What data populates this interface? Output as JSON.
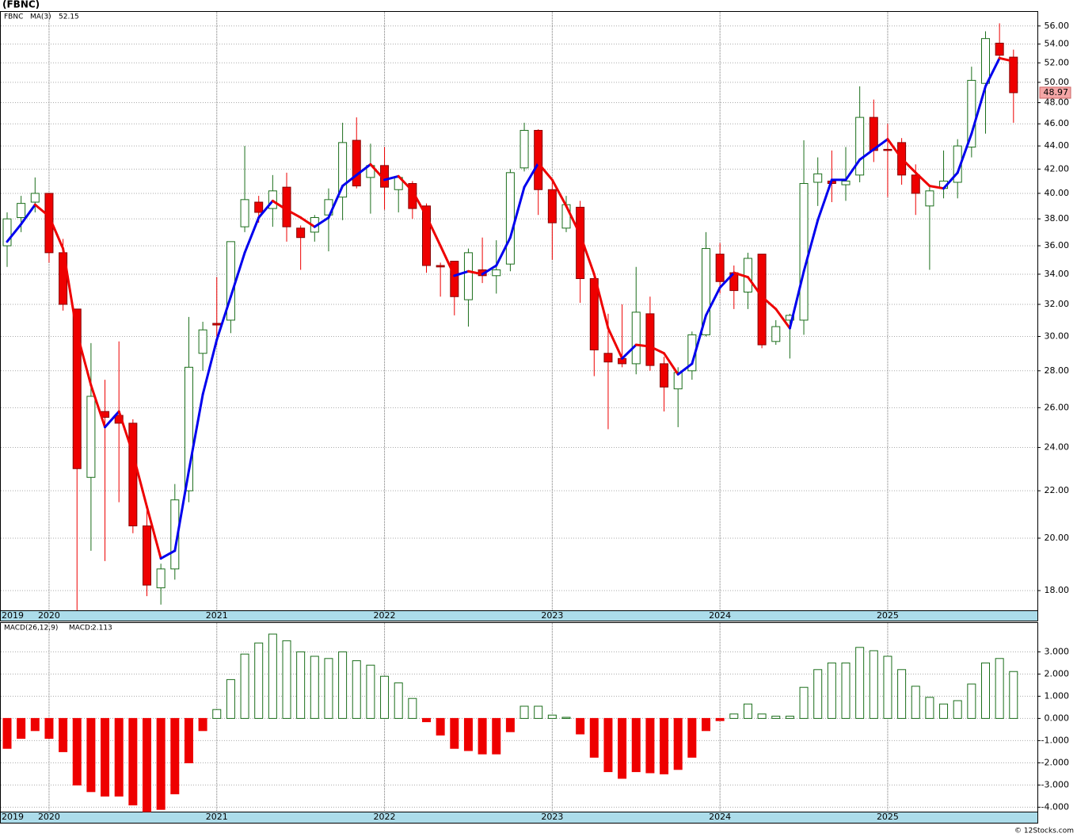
{
  "footer": "© 12Stocks.com",
  "chart_data": [
    {
      "type": "candlestick",
      "title": "(FBNC)",
      "log_scale": true,
      "grid": true,
      "categories": [
        "2019",
        null,
        null,
        "2020",
        null,
        null,
        null,
        null,
        null,
        null,
        null,
        null,
        null,
        null,
        null,
        "2021",
        null,
        null,
        null,
        null,
        null,
        null,
        null,
        null,
        null,
        null,
        null,
        "2022",
        null,
        null,
        null,
        null,
        null,
        null,
        null,
        null,
        null,
        null,
        null,
        "2023",
        null,
        null,
        null,
        null,
        null,
        null,
        null,
        null,
        null,
        null,
        null,
        "2024",
        null,
        null,
        null,
        null,
        null,
        null,
        null,
        null,
        null,
        null,
        null,
        "2025",
        null,
        null,
        null,
        null,
        null,
        null,
        null,
        null,
        null
      ],
      "series": [
        {
          "name": "FBNC",
          "up_color": "#1b6e1b",
          "down_color": "#ee0000",
          "open": [
            36,
            38.1,
            39.3,
            40,
            35.5,
            31.7,
            22.6,
            25.8,
            25.6,
            25.2,
            20.5,
            18.1,
            18.8,
            22,
            29,
            30.8,
            31,
            37.4,
            39.3,
            38.8,
            40.5,
            37.3,
            37,
            38.3,
            39.7,
            44.5,
            41.3,
            42.3,
            40.3,
            40.8,
            39,
            34.6,
            34.9,
            32.3,
            34.3,
            33.9,
            34.7,
            42.1,
            45.4,
            40.3,
            37.3,
            38.9,
            33.7,
            29,
            28.7,
            28.4,
            31.4,
            28.4,
            27,
            28,
            30.1,
            35.4,
            34.1,
            32.8,
            35.4,
            29.7,
            31,
            31,
            40.9,
            41,
            40.7,
            41.5,
            46.6,
            43.7,
            44.3,
            41.5,
            39,
            40.4,
            40.9,
            43.9,
            49.9,
            54.1,
            52.6
          ],
          "high": [
            38.5,
            39.8,
            41.3,
            40,
            36.5,
            31.7,
            29.6,
            27.5,
            29.7,
            25.4,
            21.3,
            19,
            22.3,
            31.2,
            30.9,
            33.8,
            36.3,
            44,
            39.8,
            41.5,
            41.7,
            37.5,
            38.3,
            40.4,
            46.1,
            46.6,
            44.2,
            43.9,
            41.5,
            41,
            39.2,
            34.8,
            34.9,
            35.8,
            36.6,
            36.4,
            42,
            46.1,
            45.5,
            41,
            39.8,
            39.4,
            33.8,
            31.4,
            32,
            34.5,
            32.5,
            28.8,
            28.2,
            30.3,
            37,
            36.2,
            34.6,
            35.5,
            35.4,
            31,
            31.4,
            44.5,
            43,
            43.6,
            43.9,
            49.6,
            48.3,
            46,
            44.7,
            42.4,
            40.5,
            43.6,
            44.6,
            51.6,
            55.4,
            56.3,
            53.4
          ],
          "low": [
            34.5,
            37,
            38.5,
            34.8,
            31.6,
            17.3,
            19.5,
            19.1,
            21.5,
            20.2,
            17.8,
            17.5,
            18.4,
            21.5,
            28,
            29.5,
            30.2,
            37,
            37.7,
            37.4,
            36.3,
            34.3,
            36.3,
            35.6,
            37.9,
            40.4,
            38.4,
            38.7,
            38.5,
            38,
            34.1,
            32.5,
            31.3,
            30.6,
            33.4,
            32.7,
            34.2,
            41.8,
            38.3,
            35,
            37,
            32.1,
            27.7,
            24.9,
            28.2,
            27.8,
            28,
            25.8,
            25,
            27.5,
            30,
            32.7,
            31.7,
            31.7,
            29.3,
            29.5,
            28.7,
            30.1,
            39,
            39.3,
            39.4,
            40.9,
            42.6,
            39.7,
            40.7,
            38.3,
            34.3,
            39.6,
            39.6,
            43,
            45.1,
            52.4,
            46.1
          ],
          "close": [
            38,
            39.2,
            40,
            35.5,
            32,
            23,
            26.6,
            25.5,
            25.2,
            20.5,
            18.2,
            18.8,
            21.6,
            28.2,
            30.4,
            30.7,
            36.3,
            39.5,
            38.5,
            40.2,
            37.4,
            36.6,
            38.1,
            39.5,
            44.3,
            40.6,
            42.3,
            40.5,
            41.3,
            38.8,
            34.6,
            34.5,
            32.5,
            35.5,
            33.9,
            34.3,
            41.7,
            45.4,
            40.3,
            37.7,
            39.1,
            33.7,
            29.2,
            28.5,
            28.4,
            31.5,
            28.3,
            27.1,
            27.9,
            30.1,
            35.8,
            33.5,
            32.9,
            35.1,
            29.5,
            30.6,
            31.3,
            40.8,
            41.6,
            40.8,
            41,
            46.6,
            43.6,
            43.6,
            41.5,
            40,
            40.2,
            41,
            44,
            50.2,
            54.6,
            52.8,
            48.97
          ]
        }
      ],
      "ma": {
        "name": "MA(3)",
        "up_color": "#0000ee",
        "down_color": "#ee0000",
        "values": [
          36.3,
          37.6,
          39.1,
          38.2,
          35.8,
          30.2,
          27.2,
          25,
          25.8,
          23.7,
          21.3,
          19.2,
          19.5,
          22.9,
          26.7,
          29.8,
          32.5,
          35.5,
          38.1,
          39.4,
          38.7,
          38.1,
          37.4,
          38.1,
          40.6,
          41.5,
          42.4,
          41.1,
          41.4,
          40.2,
          38.2,
          36,
          33.9,
          34.2,
          34,
          34.6,
          36.6,
          40.5,
          42.5,
          41.1,
          39,
          36.8,
          34,
          30.5,
          28.7,
          29.5,
          29.4,
          29,
          27.8,
          28.4,
          31.3,
          33.1,
          34.1,
          33.8,
          32.5,
          31.7,
          30.5,
          34.2,
          37.9,
          41.1,
          41.1,
          42.8,
          43.7,
          44.6,
          42.9,
          41.7,
          40.6,
          40.4,
          41.7,
          45.1,
          49.6,
          52.5,
          52.15
        ]
      },
      "ylim": [
        17.3,
        57.7
      ],
      "yticks": [
        {
          "value": 18,
          "label": "18.00"
        },
        {
          "value": 20,
          "label": "20.00"
        },
        {
          "value": 22,
          "label": "22.00"
        },
        {
          "value": 24,
          "label": "24.00"
        },
        {
          "value": 26,
          "label": "26.00"
        },
        {
          "value": 28,
          "label": "28.00"
        },
        {
          "value": 30,
          "label": "30.00"
        },
        {
          "value": 32,
          "label": "32.00"
        },
        {
          "value": 34,
          "label": "34.00"
        },
        {
          "value": 36,
          "label": "36.00"
        },
        {
          "value": 38,
          "label": "38.00"
        },
        {
          "value": 40,
          "label": "40.00"
        },
        {
          "value": 42,
          "label": "42.00"
        },
        {
          "value": 44,
          "label": "44.00"
        },
        {
          "value": 46,
          "label": "46.00"
        },
        {
          "value": 48,
          "label": "48.00"
        },
        {
          "value": 50,
          "label": "50.00"
        },
        {
          "value": 52,
          "label": "52.00"
        },
        {
          "value": 54,
          "label": "54.00"
        },
        {
          "value": 56,
          "label": "56.00"
        }
      ]
    },
    {
      "type": "bar",
      "grid": true,
      "current_label": "MACD:",
      "series": [
        {
          "name": "MACD(26,12,9)",
          "up_color": "#1b6e1b",
          "down_color": "#ee0000",
          "values": [
            -1.35,
            -0.9,
            -0.55,
            -0.9,
            -1.5,
            -3,
            -3.3,
            -3.5,
            -3.5,
            -3.9,
            -4.2,
            -4.1,
            -3.4,
            -2,
            -0.55,
            0.4,
            1.75,
            2.9,
            3.4,
            3.8,
            3.5,
            3,
            2.8,
            2.7,
            3,
            2.6,
            2.4,
            1.9,
            1.6,
            0.9,
            -0.15,
            -0.75,
            -1.35,
            -1.45,
            -1.6,
            -1.6,
            -0.6,
            0.55,
            0.55,
            0.15,
            0.05,
            -0.7,
            -1.75,
            -2.4,
            -2.7,
            -2.4,
            -2.45,
            -2.5,
            -2.3,
            -1.75,
            -0.55,
            -0.1,
            0.2,
            0.65,
            0.2,
            0.1,
            0.1,
            1.4,
            2.2,
            2.5,
            2.5,
            3.2,
            3.05,
            2.8,
            2.2,
            1.45,
            0.95,
            0.65,
            0.8,
            1.55,
            2.5,
            2.7,
            2.113
          ]
        }
      ],
      "ylim": [
        -4.2,
        4.3
      ],
      "yticks": [
        {
          "value": -4,
          "label": "-4.000"
        },
        {
          "value": -3,
          "label": "-3.000"
        },
        {
          "value": -2,
          "label": "-2.000"
        },
        {
          "value": -1,
          "label": "-1.000"
        },
        {
          "value": 0,
          "label": "0.000"
        },
        {
          "value": 1,
          "label": "1.000"
        },
        {
          "value": 2,
          "label": "2.000"
        },
        {
          "value": 3,
          "label": "3.000"
        }
      ]
    }
  ]
}
